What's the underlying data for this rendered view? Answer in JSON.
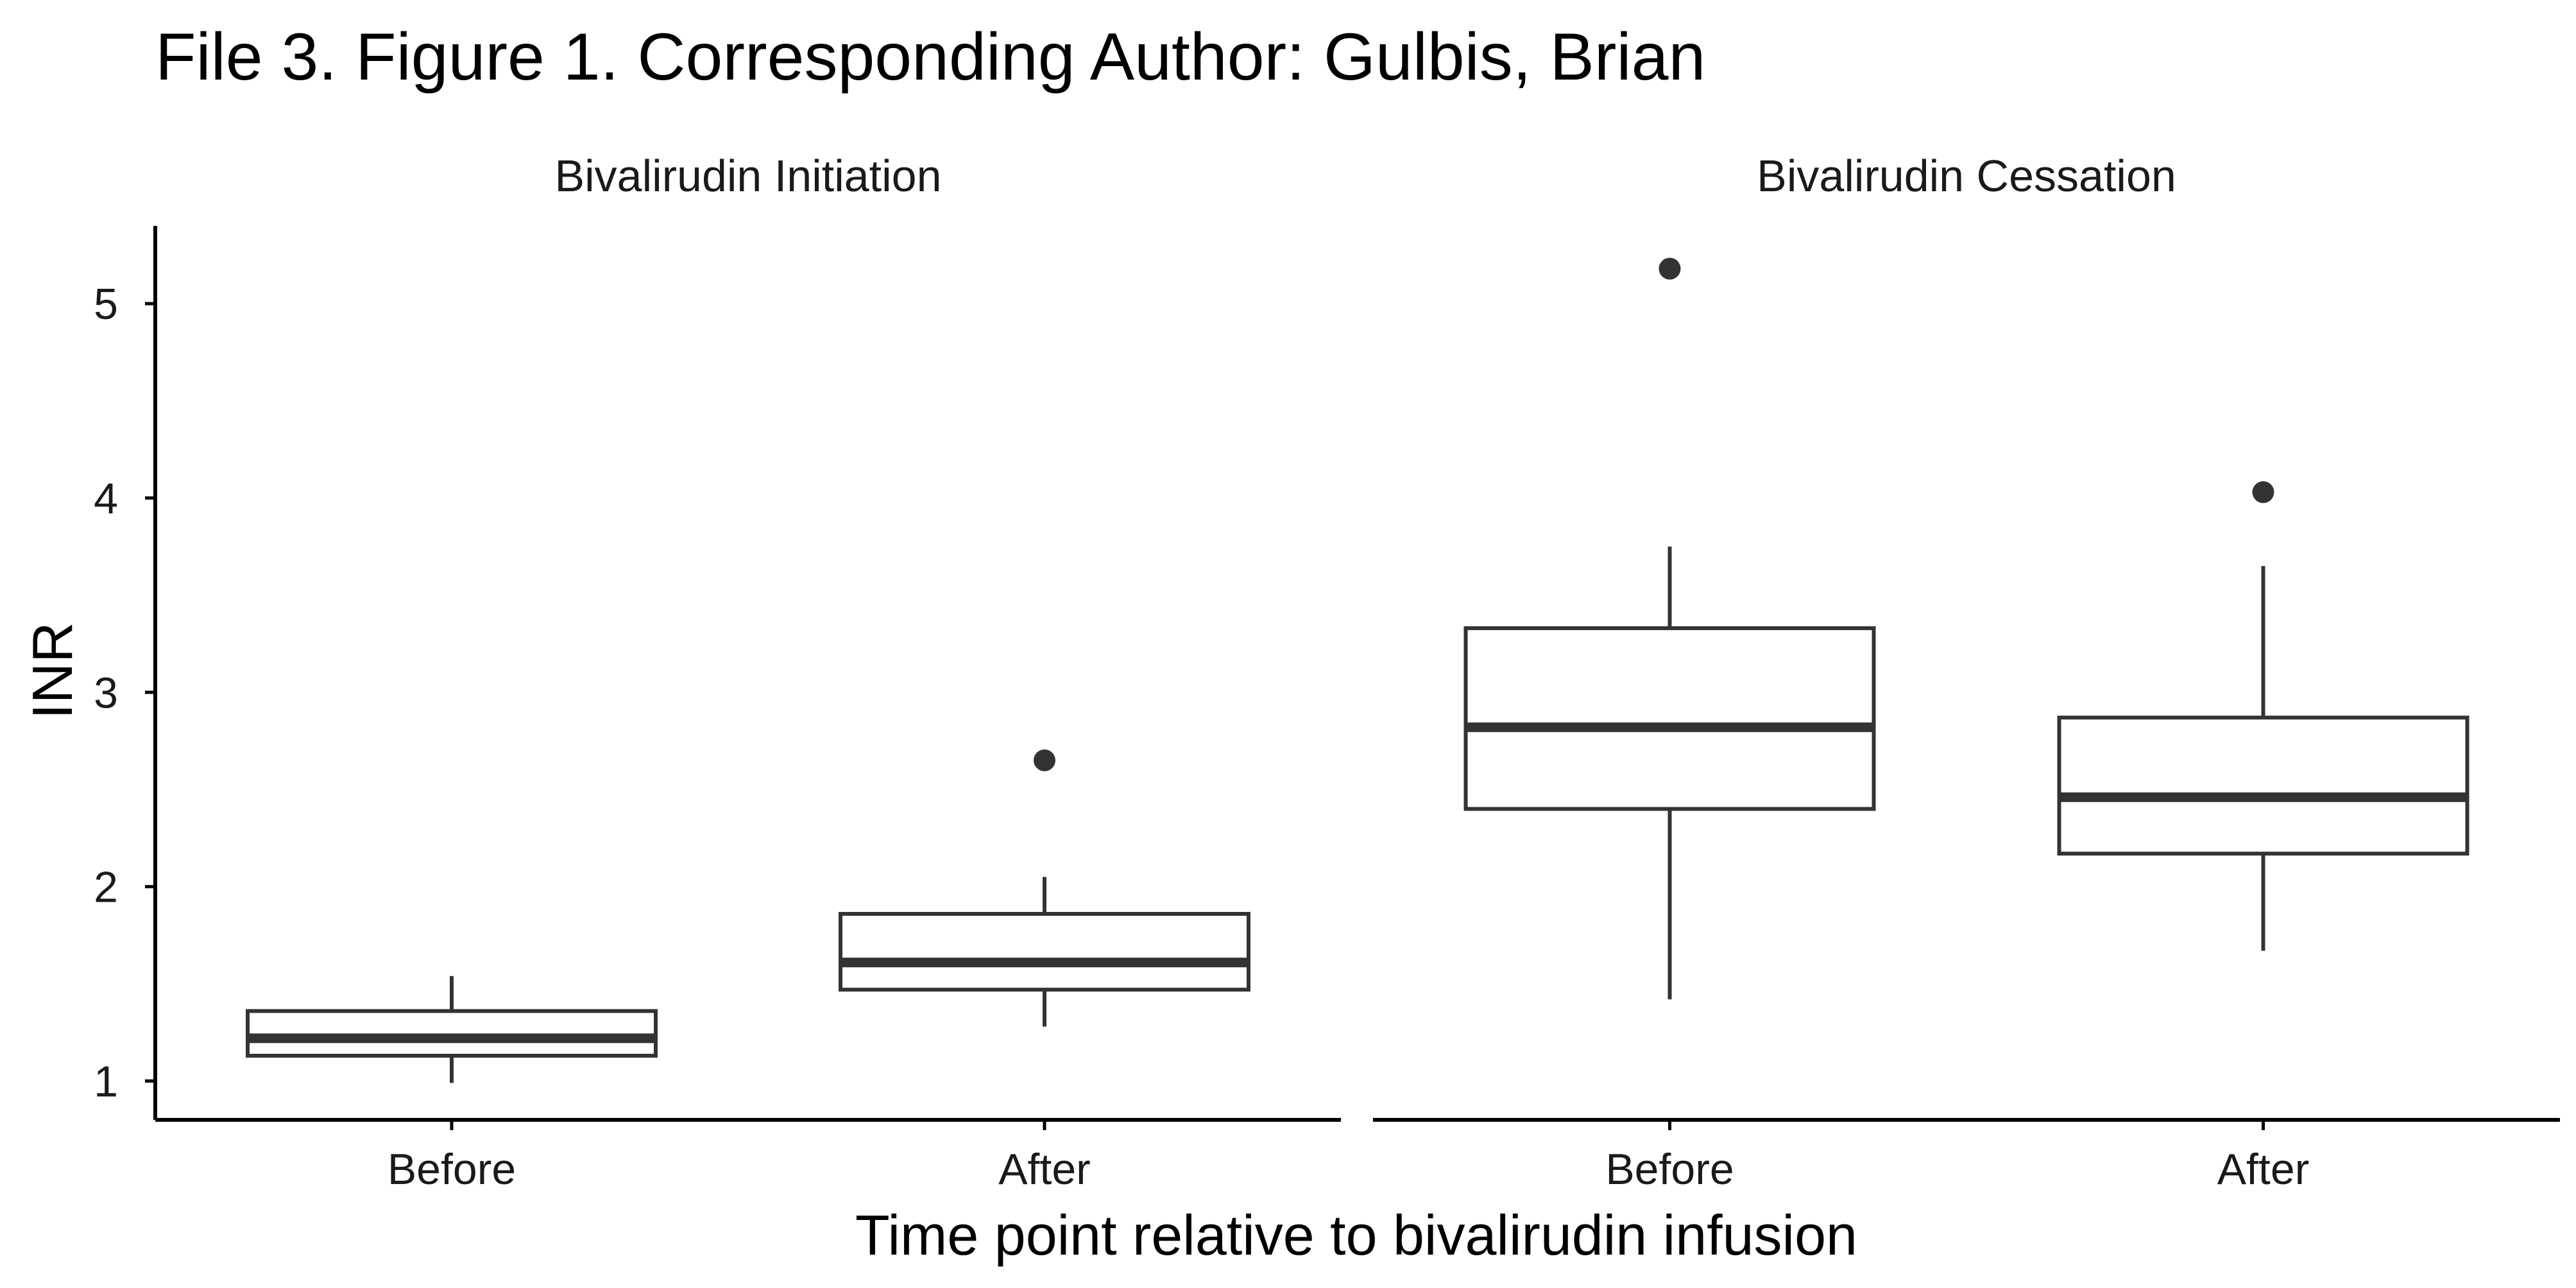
{
  "figure": {
    "title": "File 3. Figure 1. Corresponding Author: Gulbis, Brian"
  },
  "chart_data": {
    "type": "boxplot",
    "title": "File 3. Figure 1. Corresponding Author: Gulbis, Brian",
    "xlabel": "Time point relative to bivalirudin infusion",
    "ylabel": "INR",
    "ylim": [
      0.8,
      5.4
    ],
    "yticks": [
      1,
      2,
      3,
      4,
      5
    ],
    "grid": false,
    "legend": "none",
    "colors": {
      "box_stroke": "#333333",
      "box_fill": "#ffffff",
      "outlier": "#333333",
      "axis": "#000000"
    },
    "panels": [
      {
        "strip_label": "Bivalirudin Initiation",
        "categories": [
          "Before",
          "After"
        ],
        "boxes": [
          {
            "category": "Before",
            "whisker_low": 0.99,
            "q1": 1.13,
            "median": 1.22,
            "q3": 1.36,
            "whisker_high": 1.54,
            "outliers": []
          },
          {
            "category": "After",
            "whisker_low": 1.28,
            "q1": 1.47,
            "median": 1.61,
            "q3": 1.86,
            "whisker_high": 2.05,
            "outliers": [
              2.65
            ]
          }
        ]
      },
      {
        "strip_label": "Bivalirudin Cessation",
        "categories": [
          "Before",
          "After"
        ],
        "boxes": [
          {
            "category": "Before",
            "whisker_low": 1.42,
            "q1": 2.4,
            "median": 2.82,
            "q3": 3.33,
            "whisker_high": 3.75,
            "outliers": [
              5.18
            ]
          },
          {
            "category": "After",
            "whisker_low": 1.67,
            "q1": 2.17,
            "median": 2.46,
            "q3": 2.87,
            "whisker_high": 3.65,
            "outliers": [
              4.03
            ]
          }
        ]
      }
    ]
  }
}
